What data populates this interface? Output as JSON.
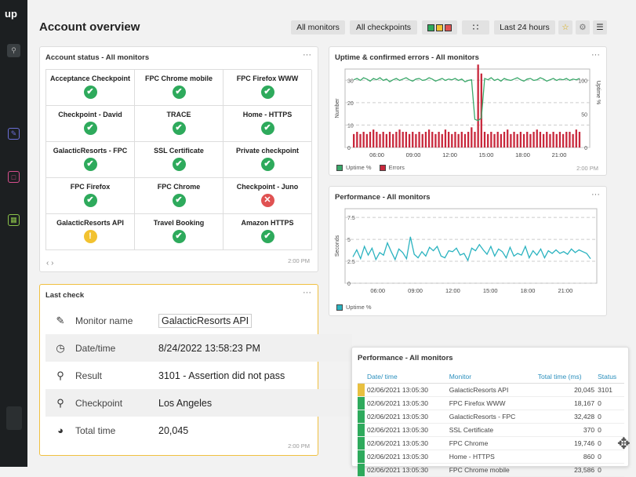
{
  "sidebar": {
    "logo": "up"
  },
  "header": {
    "title": "Account overview",
    "filters": [
      "All monitors",
      "All checkpoints"
    ],
    "time_range": "Last 24 hours"
  },
  "account_status": {
    "title": "Account status - All monitors",
    "time": "2:00 PM",
    "cells": [
      {
        "label": "Acceptance Checkpoint",
        "status": "ok"
      },
      {
        "label": "FPC Chrome mobile",
        "status": "ok"
      },
      {
        "label": "FPC Firefox WWW",
        "status": "ok"
      },
      {
        "label": "Checkpoint - David",
        "status": "ok"
      },
      {
        "label": "TRACE",
        "status": "ok"
      },
      {
        "label": "Home - HTTPS",
        "status": "ok"
      },
      {
        "label": "GalacticResorts - FPC",
        "status": "ok"
      },
      {
        "label": "SSL Certificate",
        "status": "ok"
      },
      {
        "label": "Private checkpoint",
        "status": "ok"
      },
      {
        "label": "FPC Firefox",
        "status": "ok"
      },
      {
        "label": "FPC Chrome",
        "status": "ok"
      },
      {
        "label": "Checkpoint - Juno",
        "status": "error"
      },
      {
        "label": "GalacticResorts API",
        "status": "warning"
      },
      {
        "label": "Travel Booking",
        "status": "ok"
      },
      {
        "label": "Amazon HTTPS",
        "status": "ok"
      }
    ],
    "pager": "‹  ›"
  },
  "last_check": {
    "title": "Last check",
    "time": "2:00 PM",
    "rows": [
      {
        "icon": "pencil-icon",
        "label": "Monitor name",
        "value": "GalacticResorts API"
      },
      {
        "icon": "clock-icon",
        "label": "Date/time",
        "value": "8/24/2022 13:58:23 PM"
      },
      {
        "icon": "magnifier-icon",
        "label": "Result",
        "value": "3101 - Assertion did not pass"
      },
      {
        "icon": "location-pin-icon",
        "label": "Checkpoint",
        "value": "Los Angeles"
      },
      {
        "icon": "gauge-icon",
        "label": "Total time",
        "value": "20,045"
      }
    ]
  },
  "uptime_panel": {
    "title": "Uptime & confirmed errors - All monitors",
    "time": "2:00 PM",
    "legend": [
      "Uptime %",
      "Errors"
    ]
  },
  "performance_panel": {
    "title": "Performance - All monitors",
    "legend": [
      "Uptime %"
    ]
  },
  "chart_data": [
    {
      "type": "bar",
      "title": "Uptime & confirmed errors - All monitors",
      "ylabel": "Number",
      "y2label": "Uptime %",
      "x_ticks": [
        "06:00",
        "09:00",
        "12:00",
        "15:00",
        "18:00",
        "21:00"
      ],
      "y_ticks": [
        "0",
        "10",
        "20",
        "30"
      ],
      "y2_ticks": [
        "0",
        "50",
        "100"
      ],
      "ylim": [
        0,
        35
      ],
      "y2lim": [
        0,
        117
      ],
      "series": [
        {
          "name": "Errors",
          "color": "#c8283c",
          "values": [
            6,
            7,
            6,
            7,
            6,
            7,
            8,
            7,
            6,
            7,
            6,
            7,
            6,
            7,
            8,
            7,
            7,
            6,
            7,
            6,
            7,
            6,
            7,
            8,
            7,
            6,
            7,
            6,
            8,
            7,
            6,
            7,
            6,
            7,
            6,
            7,
            9,
            7,
            37,
            33,
            7,
            6,
            7,
            6,
            7,
            6,
            7,
            8,
            6,
            7,
            6,
            7,
            6,
            7,
            6,
            7,
            8,
            7,
            6,
            7,
            6,
            7,
            6,
            7,
            6,
            7,
            7,
            6,
            8,
            7
          ]
        },
        {
          "name": "Uptime %",
          "color": "#3aa86a",
          "values": [
            101,
            103,
            100,
            104,
            102,
            99,
            103,
            101,
            104,
            100,
            102,
            98,
            101,
            103,
            100,
            102,
            104,
            101,
            99,
            102,
            103,
            100,
            101,
            104,
            102,
            99,
            101,
            103,
            100,
            102,
            101,
            103,
            100,
            102,
            98,
            100,
            101,
            42,
            40,
            44,
            103,
            101,
            104,
            100,
            102,
            99,
            103,
            101,
            100,
            102,
            104,
            101,
            99,
            102,
            103,
            100,
            101,
            104,
            102,
            99,
            101,
            103,
            100,
            102,
            101,
            103,
            100,
            102,
            101,
            103
          ]
        }
      ]
    },
    {
      "type": "line",
      "title": "Performance - All monitors",
      "ylabel": "Seconds",
      "x_ticks": [
        "06:00",
        "09:00",
        "12:00",
        "15:00",
        "18:00",
        "21:00"
      ],
      "y_ticks": [
        "0",
        "2.5",
        "5",
        "7.5"
      ],
      "ylim": [
        0,
        8.5
      ],
      "series": [
        {
          "name": "Uptime %",
          "color": "#2bb3c0",
          "values": [
            3,
            3.8,
            2.8,
            4.2,
            3.2,
            4,
            2.7,
            3.5,
            3.2,
            4.6,
            3.6,
            2.7,
            3.9,
            3.5,
            2.8,
            5.3,
            3.3,
            2.9,
            3.6,
            3.1,
            4.1,
            3.7,
            4.2,
            3.1,
            2.9,
            3.7,
            3.6,
            4,
            3.2,
            3.4,
            2.6,
            4,
            3.7,
            4.4,
            3.8,
            3.3,
            4.2,
            3.1,
            3.9,
            3.6,
            2.9,
            4.1,
            3.1,
            3.4,
            3.2,
            4.2,
            2.9,
            3.7,
            3.2,
            3.9,
            2.9,
            3.7,
            3.4,
            3.8,
            3.4,
            3.6,
            3.3,
            3.9,
            3.5,
            3.8,
            3.6,
            3.4,
            2.8
          ]
        }
      ]
    }
  ],
  "perf_table": {
    "title": "Performance - All monitors",
    "columns": [
      "Date/ time",
      "Monitor",
      "Total time (ms)",
      "Status"
    ],
    "rows": [
      {
        "date": "02/06/2021 13:05:30",
        "monitor": "GalacticResorts API",
        "time": "20,045",
        "status": "3101",
        "color": "#e8c040"
      },
      {
        "date": "02/06/2021 13:05:30",
        "monitor": "FPC Firefox WWW",
        "time": "18,167",
        "status": "0",
        "color": "#2eaa5c"
      },
      {
        "date": "02/06/2021 13:05:30",
        "monitor": "GalacticResorts - FPC",
        "time": "32,428",
        "status": "0",
        "color": "#2eaa5c"
      },
      {
        "date": "02/06/2021 13:05:30",
        "monitor": "SSL Certificate",
        "time": "370",
        "status": "0",
        "color": "#2eaa5c"
      },
      {
        "date": "02/06/2021 13:05:30",
        "monitor": "FPC Chrome",
        "time": "19,746",
        "status": "0",
        "color": "#2eaa5c"
      },
      {
        "date": "02/06/2021 13:05:30",
        "monitor": "Home - HTTPS",
        "time": "860",
        "status": "0",
        "color": "#2eaa5c"
      },
      {
        "date": "02/06/2021 13:05:30",
        "monitor": "FPC Chrome mobile",
        "time": "23,586",
        "status": "0",
        "color": "#2eaa5c"
      }
    ]
  },
  "colors": {
    "ok": "#2eaa5c",
    "error": "#e05252",
    "warning": "#f2c230",
    "accent": "#2a8fbd",
    "last_check_border": "#f0c040"
  }
}
